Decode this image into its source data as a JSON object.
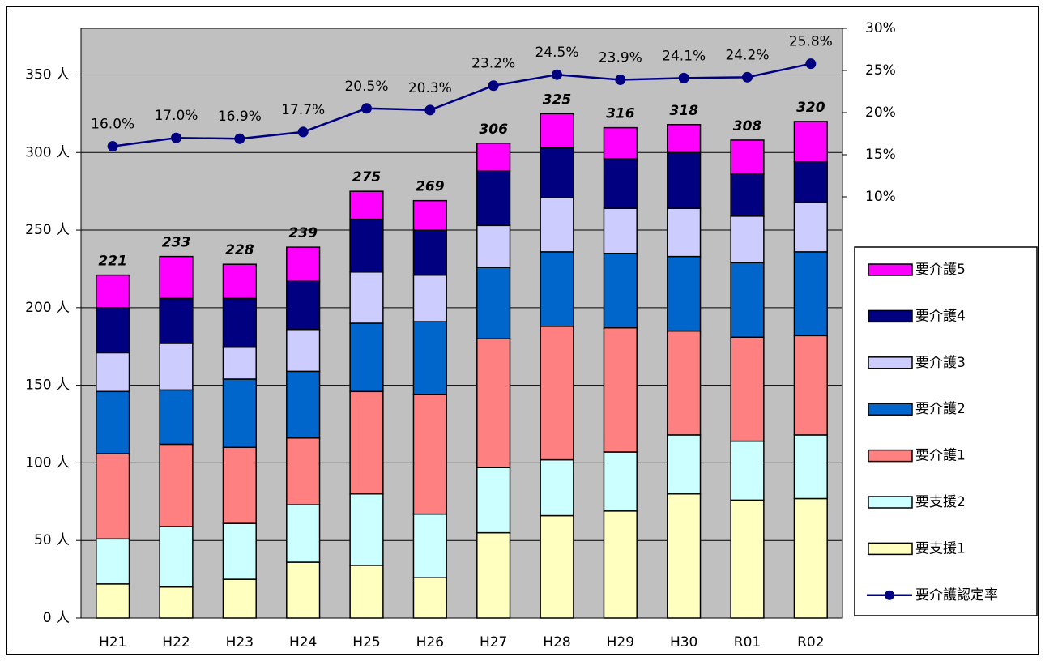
{
  "chart_data": {
    "type": "bar",
    "stacked": true,
    "categories": [
      "H21",
      "H22",
      "H23",
      "H24",
      "H25",
      "H26",
      "H27",
      "H28",
      "H29",
      "H30",
      "R01",
      "R02"
    ],
    "ylim": [
      0,
      380
    ],
    "yticks": [
      {
        "value": 0,
        "label": "0 人"
      },
      {
        "value": 50,
        "label": "50 人"
      },
      {
        "value": 100,
        "label": "100 人"
      },
      {
        "value": 150,
        "label": "150 人"
      },
      {
        "value": 200,
        "label": "200 人"
      },
      {
        "value": 250,
        "label": "250 人"
      },
      {
        "value": 300,
        "label": "300 人"
      },
      {
        "value": 350,
        "label": "350 人"
      }
    ],
    "y2lim": [
      -40,
      30
    ],
    "y2ticks": [
      {
        "value": 10,
        "label": "10%"
      },
      {
        "value": 15,
        "label": "15%"
      },
      {
        "value": 20,
        "label": "20%"
      },
      {
        "value": 25,
        "label": "25%"
      },
      {
        "value": 30,
        "label": "30%"
      }
    ],
    "grid": true,
    "legend": "right",
    "background": "#c0c0c0",
    "totals": [
      221,
      233,
      228,
      239,
      275,
      269,
      306,
      325,
      316,
      318,
      308,
      320
    ],
    "series": [
      {
        "name": "要支援1",
        "color": "#ffffc0",
        "values": [
          22,
          20,
          25,
          36,
          34,
          26,
          55,
          66,
          69,
          80,
          76,
          77
        ]
      },
      {
        "name": "要支援2",
        "color": "#ccffff",
        "values": [
          29,
          39,
          36,
          37,
          46,
          41,
          42,
          36,
          38,
          38,
          38,
          41
        ]
      },
      {
        "name": "要介護1",
        "color": "#ff8080",
        "values": [
          55,
          53,
          49,
          43,
          66,
          77,
          83,
          86,
          80,
          67,
          67,
          64
        ]
      },
      {
        "name": "要介護2",
        "color": "#0066cc",
        "values": [
          40,
          35,
          44,
          43,
          44,
          47,
          46,
          48,
          48,
          48,
          48,
          54
        ]
      },
      {
        "name": "要介護3",
        "color": "#ccccff",
        "values": [
          25,
          30,
          21,
          27,
          33,
          30,
          27,
          35,
          29,
          31,
          30,
          32
        ]
      },
      {
        "name": "要介護4",
        "color": "#000080",
        "values": [
          29,
          29,
          31,
          31,
          34,
          29,
          35,
          32,
          32,
          36,
          27,
          26
        ]
      },
      {
        "name": "要介護5",
        "color": "#ff00ff",
        "values": [
          21,
          27,
          22,
          22,
          18,
          19,
          18,
          22,
          20,
          18,
          22,
          26
        ]
      },
      {
        "name": "要介護認定率",
        "type": "line",
        "axis": "y2",
        "color": "#000080",
        "values": [
          16.0,
          17.0,
          16.9,
          17.7,
          20.5,
          20.3,
          23.2,
          24.5,
          23.9,
          24.1,
          24.2,
          25.8
        ],
        "value_labels": [
          "16.0%",
          "17.0%",
          "16.9%",
          "17.7%",
          "20.5%",
          "20.3%",
          "23.2%",
          "24.5%",
          "23.9%",
          "24.1%",
          "24.2%",
          "25.8%"
        ]
      }
    ]
  }
}
